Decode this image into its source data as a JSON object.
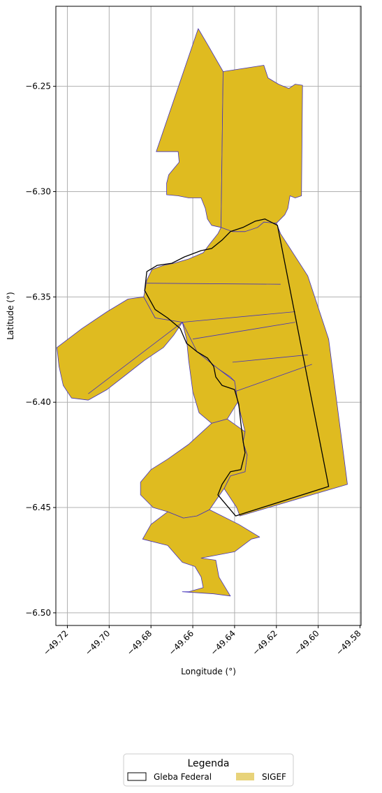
{
  "chart_data": {
    "type": "map",
    "xlabel": "Longitude (°)",
    "ylabel": "Latitude (°)",
    "xlim": [
      -49.7255,
      -49.5795
    ],
    "ylim": [
      -6.506,
      -6.212
    ],
    "xticks": [
      -49.72,
      -49.7,
      -49.68,
      -49.66,
      -49.64,
      -49.62,
      -49.6,
      -49.58
    ],
    "xtick_labels": [
      "−49.72",
      "−49.70",
      "−49.68",
      "−49.66",
      "−49.64",
      "−49.62",
      "−49.60",
      "−49.58"
    ],
    "yticks": [
      -6.25,
      -6.3,
      -6.35,
      -6.4,
      -6.45,
      -6.5
    ],
    "ytick_labels": [
      "−6.25",
      "−6.30",
      "−6.35",
      "−6.40",
      "−6.45",
      "−6.50"
    ],
    "grid": true,
    "legend": {
      "title": "Legenda",
      "placement": "bottom-center",
      "entries": [
        {
          "label": "Gleba Federal",
          "style": "outline",
          "edgecolor": "#000000",
          "facecolor": "#ffffff"
        },
        {
          "label": "SIGEF",
          "style": "fill",
          "facecolor": "#e8d37a"
        }
      ]
    },
    "layers": [
      {
        "name": "SIGEF",
        "facecolor": "#dfbb20",
        "edgecolor": "#4433bb",
        "polygons": [
          {
            "points": [
              [
                -49.6574,
                -6.2226
              ],
              [
                -49.653,
                -6.23
              ],
              [
                -49.6455,
                -6.243
              ],
              [
                -49.6465,
                -6.317
              ],
              [
                -49.651,
                -6.316
              ],
              [
                -49.653,
                -6.313
              ],
              [
                -49.654,
                -6.308
              ],
              [
                -49.656,
                -6.303
              ],
              [
                -49.662,
                -6.303
              ],
              [
                -49.667,
                -6.302
              ],
              [
                -49.6725,
                -6.3015
              ],
              [
                -49.6725,
                -6.296
              ],
              [
                -49.6715,
                -6.292
              ],
              [
                -49.669,
                -6.289
              ],
              [
                -49.6665,
                -6.286
              ],
              [
                -49.667,
                -6.281
              ],
              [
                -49.6775,
                -6.281
              ]
            ]
          },
          {
            "points": [
              [
                -49.6455,
                -6.243
              ],
              [
                -49.626,
                -6.24
              ],
              [
                -49.624,
                -6.246
              ],
              [
                -49.619,
                -6.249
              ],
              [
                -49.614,
                -6.251
              ],
              [
                -49.611,
                -6.249
              ],
              [
                -49.6075,
                -6.2495
              ],
              [
                -49.608,
                -6.302
              ],
              [
                -49.611,
                -6.303
              ],
              [
                -49.6135,
                -6.302
              ],
              [
                -49.6145,
                -6.308
              ],
              [
                -49.616,
                -6.311
              ],
              [
                -49.62,
                -6.315
              ],
              [
                -49.626,
                -6.3145
              ],
              [
                -49.629,
                -6.317
              ],
              [
                -49.632,
                -6.3185
              ],
              [
                -49.635,
                -6.319
              ],
              [
                -49.641,
                -6.319
              ],
              [
                -49.645,
                -6.318
              ],
              [
                -49.6465,
                -6.317
              ]
            ]
          },
          {
            "points": [
              [
                -49.626,
                -6.3145
              ],
              [
                -49.62,
                -6.315
              ],
              [
                -49.618,
                -6.32
              ],
              [
                -49.605,
                -6.34
              ],
              [
                -49.595,
                -6.37
              ],
              [
                -49.586,
                -6.439
              ],
              [
                -49.6375,
                -6.454
              ],
              [
                -49.639,
                -6.45
              ],
              [
                -49.645,
                -6.441
              ],
              [
                -49.642,
                -6.435
              ],
              [
                -49.635,
                -6.433
              ],
              [
                -49.634,
                -6.425
              ],
              [
                -49.636,
                -6.419
              ],
              [
                -49.635,
                -6.414
              ],
              [
                -49.6385,
                -6.4
              ],
              [
                -49.64,
                -6.39
              ],
              [
                -49.642,
                -6.388
              ],
              [
                -49.648,
                -6.384
              ],
              [
                -49.653,
                -6.38
              ],
              [
                -49.658,
                -6.376
              ],
              [
                -49.663,
                -6.37
              ],
              [
                -49.665,
                -6.362
              ],
              [
                -49.678,
                -6.36
              ],
              [
                -49.6835,
                -6.35
              ],
              [
                -49.682,
                -6.342
              ],
              [
                -49.6795,
                -6.337
              ],
              [
                -49.674,
                -6.335
              ],
              [
                -49.669,
                -6.334
              ],
              [
                -49.662,
                -6.332
              ],
              [
                -49.655,
                -6.329
              ],
              [
                -49.652,
                -6.325
              ],
              [
                -49.648,
                -6.32
              ],
              [
                -49.6465,
                -6.317
              ],
              [
                -49.641,
                -6.319
              ],
              [
                -49.635,
                -6.319
              ],
              [
                -49.629,
                -6.317
              ]
            ]
          },
          {
            "points": [
              [
                -49.665,
                -6.362
              ],
              [
                -49.669,
                -6.368
              ],
              [
                -49.674,
                -6.374
              ],
              [
                -49.683,
                -6.38
              ],
              [
                -49.692,
                -6.387
              ],
              [
                -49.701,
                -6.394
              ],
              [
                -49.71,
                -6.399
              ],
              [
                -49.718,
                -6.398
              ],
              [
                -49.722,
                -6.392
              ],
              [
                -49.724,
                -6.383
              ],
              [
                -49.725,
                -6.374
              ],
              [
                -49.713,
                -6.365
              ],
              [
                -49.701,
                -6.357
              ],
              [
                -49.691,
                -6.351
              ],
              [
                -49.6835,
                -6.35
              ],
              [
                -49.678,
                -6.36
              ]
            ]
          },
          {
            "points": [
              [
                -49.665,
                -6.362
              ],
              [
                -49.663,
                -6.37
              ],
              [
                -49.662,
                -6.38
              ],
              [
                -49.66,
                -6.395
              ],
              [
                -49.657,
                -6.405
              ],
              [
                -49.651,
                -6.41
              ],
              [
                -49.6435,
                -6.408
              ],
              [
                -49.6385,
                -6.4
              ],
              [
                -49.64,
                -6.39
              ],
              [
                -49.648,
                -6.384
              ],
              [
                -49.653,
                -6.38
              ],
              [
                -49.658,
                -6.376
              ]
            ]
          },
          {
            "points": [
              [
                -49.651,
                -6.41
              ],
              [
                -49.662,
                -6.42
              ],
              [
                -49.672,
                -6.427
              ],
              [
                -49.68,
                -6.432
              ],
              [
                -49.685,
                -6.438
              ],
              [
                -49.685,
                -6.444
              ],
              [
                -49.679,
                -6.45
              ],
              [
                -49.672,
                -6.452
              ],
              [
                -49.6645,
                -6.455
              ],
              [
                -49.658,
                -6.454
              ],
              [
                -49.652,
                -6.451
              ],
              [
                -49.645,
                -6.441
              ],
              [
                -49.642,
                -6.435
              ],
              [
                -49.635,
                -6.433
              ],
              [
                -49.634,
                -6.425
              ],
              [
                -49.636,
                -6.419
              ],
              [
                -49.635,
                -6.414
              ],
              [
                -49.6435,
                -6.408
              ]
            ]
          },
          {
            "points": [
              [
                -49.6645,
                -6.455
              ],
              [
                -49.672,
                -6.452
              ],
              [
                -49.68,
                -6.458
              ],
              [
                -49.684,
                -6.465
              ],
              [
                -49.672,
                -6.468
              ],
              [
                -49.665,
                -6.476
              ],
              [
                -49.659,
                -6.478
              ],
              [
                -49.656,
                -6.483
              ],
              [
                -49.655,
                -6.488
              ],
              [
                -49.662,
                -6.49
              ],
              [
                -49.665,
                -6.49
              ],
              [
                -49.65,
                -6.491
              ],
              [
                -49.642,
                -6.492
              ],
              [
                -49.6475,
                -6.483
              ],
              [
                -49.649,
                -6.475
              ],
              [
                -49.656,
                -6.474
              ],
              [
                -49.64,
                -6.471
              ],
              [
                -49.632,
                -6.465
              ],
              [
                -49.628,
                -6.464
              ],
              [
                -49.638,
                -6.458
              ],
              [
                -49.652,
                -6.451
              ],
              [
                -49.658,
                -6.454
              ]
            ]
          }
        ],
        "internal_lines": [
          [
            [
              -49.682,
              -6.3435
            ],
            [
              -49.618,
              -6.344
            ]
          ],
          [
            [
              -49.665,
              -6.362
            ],
            [
              -49.611,
              -6.357
            ]
          ],
          [
            [
              -49.66,
              -6.37
            ],
            [
              -49.611,
              -6.362
            ]
          ],
          [
            [
              -49.641,
              -6.381
            ],
            [
              -49.605,
              -6.3775
            ]
          ],
          [
            [
              -49.64,
              -6.395
            ],
            [
              -49.603,
              -6.382
            ]
          ],
          [
            [
              -49.665,
              -6.362
            ],
            [
              -49.71,
              -6.396
            ]
          ]
        ]
      },
      {
        "name": "Gleba Federal",
        "facecolor": "none",
        "edgecolor": "#000000",
        "polygons": [
          {
            "points": [
              [
                -49.6255,
                -6.313
              ],
              [
                -49.6195,
                -6.316
              ],
              [
                -49.595,
                -6.44
              ],
              [
                -49.6395,
                -6.454
              ],
              [
                -49.648,
                -6.444
              ],
              [
                -49.646,
                -6.439
              ],
              [
                -49.642,
                -6.433
              ],
              [
                -49.637,
                -6.432
              ],
              [
                -49.635,
                -6.424
              ],
              [
                -49.636,
                -6.418
              ],
              [
                -49.637,
                -6.41
              ],
              [
                -49.638,
                -6.401
              ],
              [
                -49.64,
                -6.394
              ],
              [
                -49.646,
                -6.392
              ],
              [
                -49.649,
                -6.388
              ],
              [
                -49.65,
                -6.383
              ],
              [
                -49.653,
                -6.379
              ],
              [
                -49.658,
                -6.376
              ],
              [
                -49.663,
                -6.372
              ],
              [
                -49.666,
                -6.365
              ],
              [
                -49.672,
                -6.36
              ],
              [
                -49.678,
                -6.356
              ],
              [
                -49.683,
                -6.347
              ],
              [
                -49.682,
                -6.338
              ],
              [
                -49.677,
                -6.335
              ],
              [
                -49.67,
                -6.334
              ],
              [
                -49.664,
                -6.331
              ],
              [
                -49.656,
                -6.328
              ],
              [
                -49.651,
                -6.327
              ],
              [
                -49.646,
                -6.323
              ],
              [
                -49.642,
                -6.319
              ],
              [
                -49.636,
                -6.317
              ],
              [
                -49.63,
                -6.314
              ]
            ]
          }
        ]
      }
    ]
  }
}
